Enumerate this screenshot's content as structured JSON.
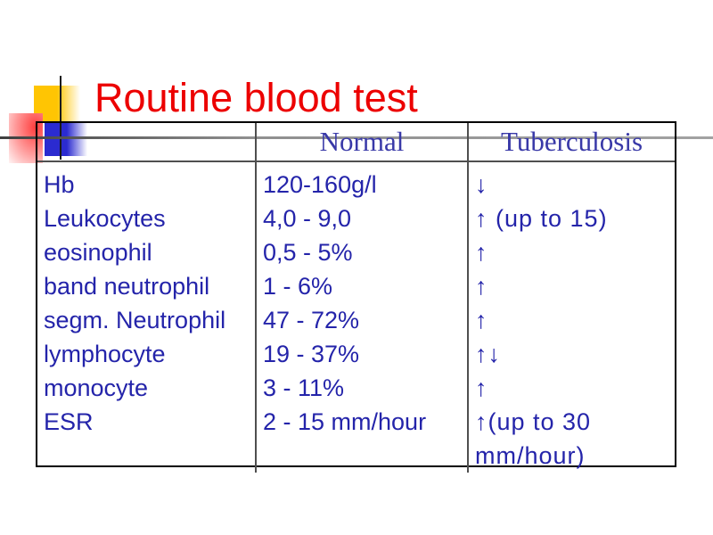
{
  "slide": {
    "title": "Routine blood test",
    "title_color": "#ec0000",
    "accent_colors": {
      "deco_yellow": "#ffc503",
      "deco_pink": "#ff3d3d",
      "deco_blue": "#2b2bd0",
      "body_text_blue": "#2424aa",
      "header_text_blue": "#3939a8"
    }
  },
  "table": {
    "headers": {
      "parameter": "",
      "normal": "Normal",
      "tuberculosis": "Tuberculosis"
    },
    "rows": [
      {
        "parameter": "Hb",
        "normal": "120-160g/l",
        "tuberculosis": "↓"
      },
      {
        "parameter": "Leukocytes",
        "normal": "4,0 - 9,0",
        "tuberculosis": "↑ (up to 15)"
      },
      {
        "parameter": "eosinophil",
        "normal": "0,5 - 5%",
        "tuberculosis": "↑"
      },
      {
        "parameter": "band neutrophil",
        "normal": "1 - 6%",
        "tuberculosis": "↑"
      },
      {
        "parameter": "segm. Neutrophil",
        "normal": "47 - 72%",
        "tuberculosis": "↑"
      },
      {
        "parameter": "lymphocyte",
        "normal": "19 - 37%",
        "tuberculosis": "↑↓"
      },
      {
        "parameter": "monocyte",
        "normal": "3 - 11%",
        "tuberculosis": "↑"
      },
      {
        "parameter": "ESR",
        "normal": "2 - 15 mm/hour",
        "tuberculosis": "↑(up to 30 mm/hour)"
      }
    ]
  }
}
